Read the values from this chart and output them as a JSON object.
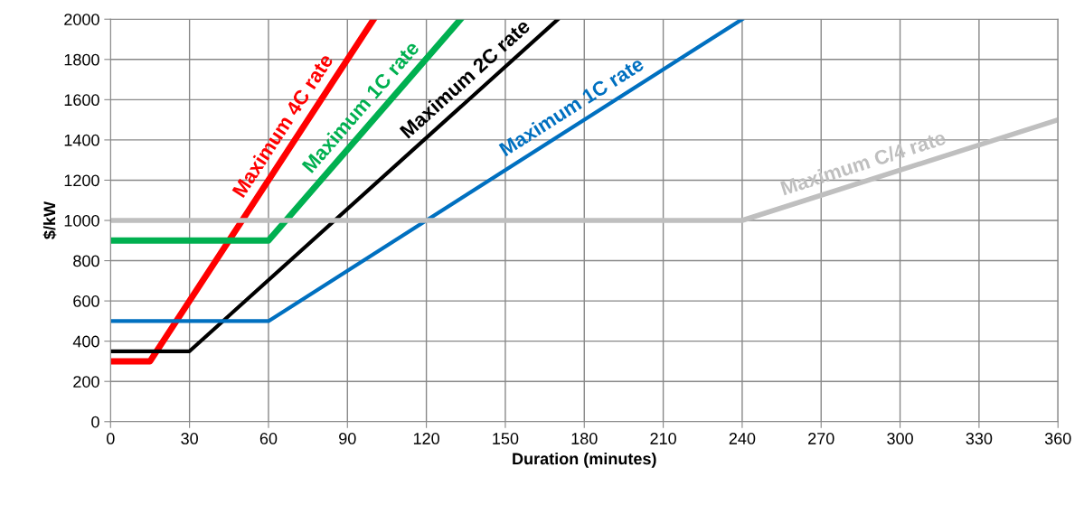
{
  "chart_data": {
    "type": "line",
    "xlabel": "Duration (minutes)",
    "ylabel": "$/kW",
    "xlim": [
      0,
      360
    ],
    "xticks": [
      0,
      30,
      60,
      90,
      120,
      150,
      180,
      210,
      240,
      270,
      300,
      330,
      360
    ],
    "ylim": [
      0,
      2000
    ],
    "yticks": [
      0,
      200,
      400,
      600,
      800,
      1000,
      1200,
      1400,
      1600,
      1800,
      2000
    ],
    "grid": true,
    "legend": false,
    "marker": "none",
    "line_style": "solid",
    "series": [
      {
        "name": "Maximum 4C rate",
        "color": "#ff0000",
        "x": [
          0,
          15,
          100
        ],
        "values": [
          300,
          300,
          2000
        ]
      },
      {
        "name": "Maximum 1C rate",
        "color": "#00b050",
        "x": [
          0,
          60,
          133
        ],
        "values": [
          900,
          900,
          2000
        ]
      },
      {
        "name": "Maximum 2C rate",
        "color": "#000000",
        "x": [
          0,
          30,
          170
        ],
        "values": [
          350,
          350,
          2000
        ]
      },
      {
        "name": "Maximum 1C rate",
        "color": "#0070c0",
        "x": [
          0,
          60,
          240
        ],
        "values": [
          500,
          500,
          2000
        ]
      },
      {
        "name": "Maximum C/4 rate",
        "color": "#bfbfbf",
        "x": [
          0,
          240,
          360
        ],
        "values": [
          1000,
          1000,
          1500
        ]
      }
    ]
  }
}
